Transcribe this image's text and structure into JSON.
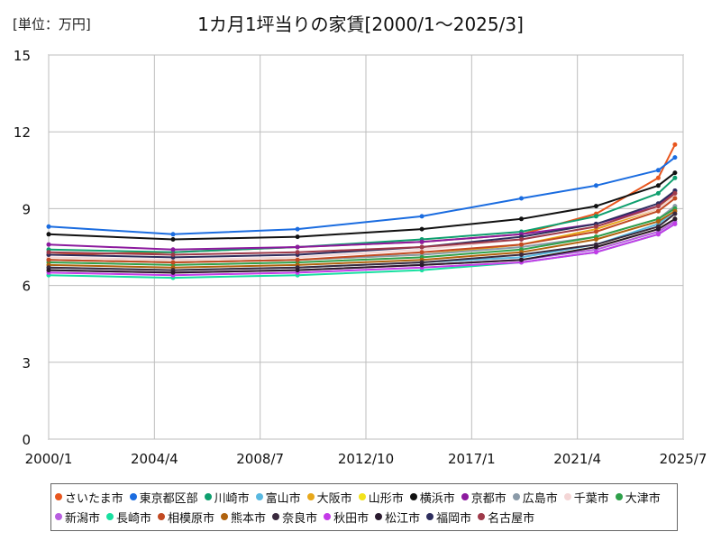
{
  "header": {
    "unit_label": "[単位：万円]"
  },
  "chart_data": {
    "type": "line",
    "title": "1カ月1坪当りの家賃[2000/1～2025/3]",
    "xlabel": "",
    "ylabel": "",
    "xlim": [
      "2000/1",
      "2025/7"
    ],
    "ylim": [
      0,
      15
    ],
    "y_ticks": [
      0,
      3,
      6,
      9,
      12,
      15
    ],
    "x_ticks": [
      "2000/1",
      "2004/4",
      "2008/7",
      "2012/10",
      "2017/1",
      "2021/4",
      "2025/7"
    ],
    "grid": true,
    "legend_position": "bottom",
    "series": [
      {
        "name": "さいたま市",
        "color": "#e8561e",
        "values": [
          [
            2000.0,
            7.2
          ],
          [
            2005.0,
            7.3
          ],
          [
            2010.0,
            7.5
          ],
          [
            2015.0,
            7.7
          ],
          [
            2019.0,
            8.0
          ],
          [
            2022.0,
            8.8
          ],
          [
            2024.5,
            10.2
          ],
          [
            2025.17,
            11.5
          ]
        ]
      },
      {
        "name": "東京都区部",
        "color": "#1a6ce0",
        "values": [
          [
            2000.0,
            8.3
          ],
          [
            2005.0,
            8.0
          ],
          [
            2010.0,
            8.2
          ],
          [
            2015.0,
            8.7
          ],
          [
            2019.0,
            9.4
          ],
          [
            2022.0,
            9.9
          ],
          [
            2024.5,
            10.5
          ],
          [
            2025.17,
            11.0
          ]
        ]
      },
      {
        "name": "川崎市",
        "color": "#0e9f6e",
        "values": [
          [
            2000.0,
            7.4
          ],
          [
            2005.0,
            7.3
          ],
          [
            2010.0,
            7.5
          ],
          [
            2015.0,
            7.8
          ],
          [
            2019.0,
            8.1
          ],
          [
            2022.0,
            8.7
          ],
          [
            2024.5,
            9.6
          ],
          [
            2025.17,
            10.2
          ]
        ]
      },
      {
        "name": "富山市",
        "color": "#58b8e0",
        "values": [
          [
            2000.0,
            6.7
          ],
          [
            2005.0,
            6.6
          ],
          [
            2010.0,
            6.7
          ],
          [
            2015.0,
            6.9
          ],
          [
            2019.0,
            7.1
          ],
          [
            2022.0,
            7.6
          ],
          [
            2024.5,
            8.4
          ],
          [
            2025.17,
            8.9
          ]
        ]
      },
      {
        "name": "大阪市",
        "color": "#e8a81a",
        "values": [
          [
            2000.0,
            7.0
          ],
          [
            2005.0,
            6.9
          ],
          [
            2010.0,
            7.0
          ],
          [
            2015.0,
            7.2
          ],
          [
            2019.0,
            7.6
          ],
          [
            2022.0,
            8.2
          ],
          [
            2024.5,
            9.0
          ],
          [
            2025.17,
            9.6
          ]
        ]
      },
      {
        "name": "山形市",
        "color": "#f2e21a",
        "values": [
          [
            2000.0,
            6.6
          ],
          [
            2005.0,
            6.5
          ],
          [
            2010.0,
            6.6
          ],
          [
            2015.0,
            6.8
          ],
          [
            2019.0,
            7.0
          ],
          [
            2022.0,
            7.5
          ],
          [
            2024.5,
            8.2
          ],
          [
            2025.17,
            8.6
          ]
        ]
      },
      {
        "name": "横浜市",
        "color": "#111111",
        "values": [
          [
            2000.0,
            8.0
          ],
          [
            2005.0,
            7.8
          ],
          [
            2010.0,
            7.9
          ],
          [
            2015.0,
            8.2
          ],
          [
            2019.0,
            8.6
          ],
          [
            2022.0,
            9.1
          ],
          [
            2024.5,
            9.9
          ],
          [
            2025.17,
            10.4
          ]
        ]
      },
      {
        "name": "京都市",
        "color": "#8c1a9e",
        "values": [
          [
            2000.0,
            7.6
          ],
          [
            2005.0,
            7.4
          ],
          [
            2010.0,
            7.5
          ],
          [
            2015.0,
            7.7
          ],
          [
            2019.0,
            8.0
          ],
          [
            2022.0,
            8.4
          ],
          [
            2024.5,
            9.1
          ],
          [
            2025.17,
            9.7
          ]
        ]
      },
      {
        "name": "広島市",
        "color": "#8a9aa8",
        "values": [
          [
            2000.0,
            7.0
          ],
          [
            2005.0,
            6.9
          ],
          [
            2010.0,
            7.0
          ],
          [
            2015.0,
            7.2
          ],
          [
            2019.0,
            7.5
          ],
          [
            2022.0,
            7.9
          ],
          [
            2024.5,
            8.6
          ],
          [
            2025.17,
            9.1
          ]
        ]
      },
      {
        "name": "千葉市",
        "color": "#f4d6d6",
        "values": [
          [
            2000.0,
            7.1
          ],
          [
            2005.0,
            7.0
          ],
          [
            2010.0,
            7.1
          ],
          [
            2015.0,
            7.4
          ],
          [
            2019.0,
            7.8
          ],
          [
            2022.0,
            8.3
          ],
          [
            2024.5,
            9.0
          ],
          [
            2025.17,
            9.5
          ]
        ]
      },
      {
        "name": "大津市",
        "color": "#2ea04a",
        "values": [
          [
            2000.0,
            6.9
          ],
          [
            2005.0,
            6.8
          ],
          [
            2010.0,
            6.9
          ],
          [
            2015.0,
            7.1
          ],
          [
            2019.0,
            7.4
          ],
          [
            2022.0,
            7.9
          ],
          [
            2024.5,
            8.6
          ],
          [
            2025.17,
            9.0
          ]
        ]
      },
      {
        "name": "新潟市",
        "color": "#b85ee0",
        "values": [
          [
            2000.0,
            6.6
          ],
          [
            2005.0,
            6.5
          ],
          [
            2010.0,
            6.6
          ],
          [
            2015.0,
            6.8
          ],
          [
            2019.0,
            7.0
          ],
          [
            2022.0,
            7.4
          ],
          [
            2024.5,
            8.1
          ],
          [
            2025.17,
            8.5
          ]
        ]
      },
      {
        "name": "長崎市",
        "color": "#18e0a0",
        "values": [
          [
            2000.0,
            6.4
          ],
          [
            2005.0,
            6.3
          ],
          [
            2010.0,
            6.4
          ],
          [
            2015.0,
            6.6
          ],
          [
            2019.0,
            6.9
          ],
          [
            2022.0,
            7.3
          ],
          [
            2024.5,
            8.0
          ],
          [
            2025.17,
            8.4
          ]
        ]
      },
      {
        "name": "相模原市",
        "color": "#c24a22",
        "values": [
          [
            2000.0,
            7.0
          ],
          [
            2005.0,
            6.9
          ],
          [
            2010.0,
            7.0
          ],
          [
            2015.0,
            7.3
          ],
          [
            2019.0,
            7.6
          ],
          [
            2022.0,
            8.1
          ],
          [
            2024.5,
            8.9
          ],
          [
            2025.17,
            9.4
          ]
        ]
      },
      {
        "name": "熊本市",
        "color": "#b0620e",
        "values": [
          [
            2000.0,
            6.8
          ],
          [
            2005.0,
            6.7
          ],
          [
            2010.0,
            6.8
          ],
          [
            2015.0,
            7.0
          ],
          [
            2019.0,
            7.3
          ],
          [
            2022.0,
            7.8
          ],
          [
            2024.5,
            8.5
          ],
          [
            2025.17,
            8.9
          ]
        ]
      },
      {
        "name": "奈良市",
        "color": "#3a2a3e",
        "values": [
          [
            2000.0,
            6.7
          ],
          [
            2005.0,
            6.6
          ],
          [
            2010.0,
            6.7
          ],
          [
            2015.0,
            6.9
          ],
          [
            2019.0,
            7.2
          ],
          [
            2022.0,
            7.6
          ],
          [
            2024.5,
            8.3
          ],
          [
            2025.17,
            8.8
          ]
        ]
      },
      {
        "name": "秋田市",
        "color": "#c43ae8",
        "values": [
          [
            2000.0,
            6.5
          ],
          [
            2005.0,
            6.4
          ],
          [
            2010.0,
            6.5
          ],
          [
            2015.0,
            6.7
          ],
          [
            2019.0,
            6.9
          ],
          [
            2022.0,
            7.3
          ],
          [
            2024.5,
            8.0
          ],
          [
            2025.17,
            8.4
          ]
        ]
      },
      {
        "name": "松江市",
        "color": "#2a1a2e",
        "values": [
          [
            2000.0,
            6.6
          ],
          [
            2005.0,
            6.5
          ],
          [
            2010.0,
            6.6
          ],
          [
            2015.0,
            6.8
          ],
          [
            2019.0,
            7.0
          ],
          [
            2022.0,
            7.5
          ],
          [
            2024.5,
            8.2
          ],
          [
            2025.17,
            8.6
          ]
        ]
      },
      {
        "name": "福岡市",
        "color": "#2e2e5e",
        "values": [
          [
            2000.0,
            7.2
          ],
          [
            2005.0,
            7.1
          ],
          [
            2010.0,
            7.2
          ],
          [
            2015.0,
            7.5
          ],
          [
            2019.0,
            7.9
          ],
          [
            2022.0,
            8.4
          ],
          [
            2024.5,
            9.2
          ],
          [
            2025.17,
            9.7
          ]
        ]
      },
      {
        "name": "名古屋市",
        "color": "#9e3a4a",
        "values": [
          [
            2000.0,
            7.3
          ],
          [
            2005.0,
            7.2
          ],
          [
            2010.0,
            7.3
          ],
          [
            2015.0,
            7.5
          ],
          [
            2019.0,
            7.8
          ],
          [
            2022.0,
            8.3
          ],
          [
            2024.5,
            9.1
          ],
          [
            2025.17,
            9.6
          ]
        ]
      }
    ]
  }
}
